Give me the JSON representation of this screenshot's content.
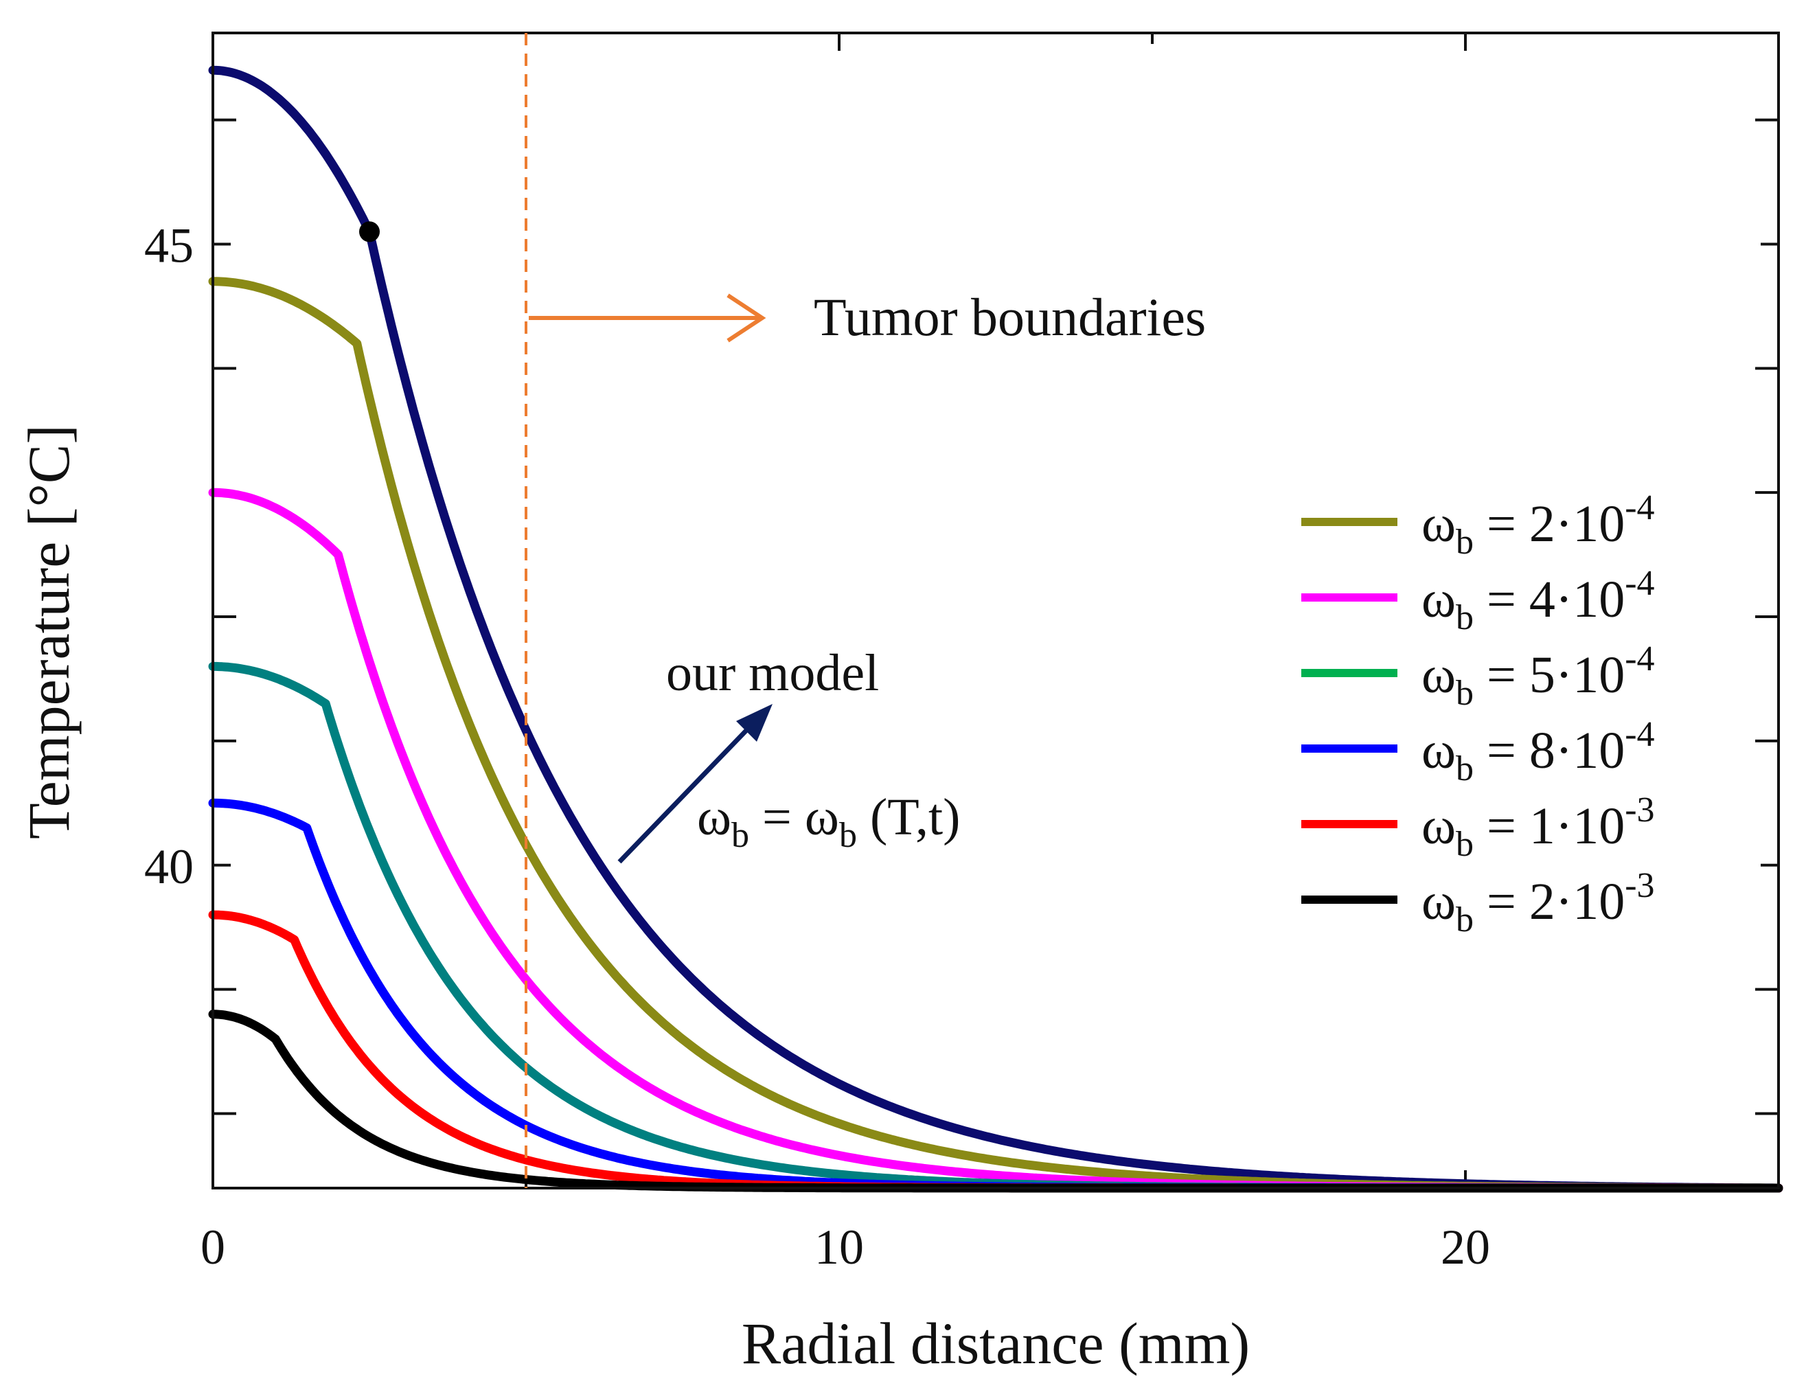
{
  "chart_data": {
    "type": "line",
    "xlabel": "Radial distance (mm)",
    "ylabel": "Temperature [°C]",
    "xlim": [
      0,
      25
    ],
    "ylim": [
      37.4,
      46.7
    ],
    "x_ticks": [
      {
        "value": 0,
        "label": "0"
      },
      {
        "value": 10,
        "label": "10"
      },
      {
        "value": 20,
        "label": "20"
      }
    ],
    "y_ticks": [
      {
        "value": 40,
        "label": "40"
      },
      {
        "value": 45,
        "label": "45"
      }
    ],
    "x_minor_ticks": [
      5,
      15
    ],
    "y_minor_ticks": [
      38,
      39,
      41,
      42,
      43,
      44,
      46
    ],
    "tumor_boundary": {
      "x": 5,
      "label": "Tumor boundaries",
      "color": "#ed7d31"
    },
    "annotations": [
      {
        "text": "our model"
      }
    ],
    "model_formula": {
      "lhs": "ω",
      "lhs_sub": "b",
      "eq": " = ",
      "rhs": "ω",
      "rhs_sub": "b",
      "rhs_tail": " (T,t)"
    },
    "legend_prefix": "ω",
    "legend_sub": "b",
    "series": [
      {
        "name": "our model",
        "legend": false,
        "color": "#0b0b6e",
        "core_T": 46.4,
        "edge_T": 45.1,
        "R": 2.5,
        "lambda": 3.4,
        "marker": true
      },
      {
        "name": "ωb = 2·10⁻⁴",
        "legend": true,
        "leg_mult": "2·10",
        "leg_exp": "-4",
        "color": "#8a8a16",
        "core_T": 44.7,
        "edge_T": 44.2,
        "R": 2.3,
        "lambda": 3.0
      },
      {
        "name": "ωb = 4·10⁻⁴",
        "legend": true,
        "leg_mult": "4·10",
        "leg_exp": "-4",
        "color": "#ff00ff",
        "core_T": 43.0,
        "edge_T": 42.5,
        "R": 2.0,
        "lambda": 2.7
      },
      {
        "name": "ωb = 5·10⁻⁴",
        "legend": true,
        "leg_mult": "5·10",
        "leg_exp": "-4",
        "legend_color": "#00b050",
        "color": "#008080",
        "core_T": 41.6,
        "edge_T": 41.3,
        "R": 1.8,
        "lambda": 2.3
      },
      {
        "name": "ωb = 8·10⁻⁴",
        "legend": true,
        "leg_mult": "8·10",
        "leg_exp": "-4",
        "color": "#0000ff",
        "core_T": 40.5,
        "edge_T": 40.3,
        "R": 1.5,
        "lambda": 2.0
      },
      {
        "name": "ωb = 1·10⁻³",
        "legend": true,
        "leg_mult": "1·10",
        "leg_exp": "-3",
        "color": "#ff0000",
        "core_T": 39.6,
        "edge_T": 39.4,
        "R": 1.3,
        "lambda": 1.7
      },
      {
        "name": "ωb = 2·10⁻³",
        "legend": true,
        "leg_mult": "2·10",
        "leg_exp": "-3",
        "color": "#000000",
        "core_T": 38.8,
        "edge_T": 38.6,
        "R": 1.0,
        "lambda": 1.4
      }
    ],
    "baseline_T": 37.4
  }
}
